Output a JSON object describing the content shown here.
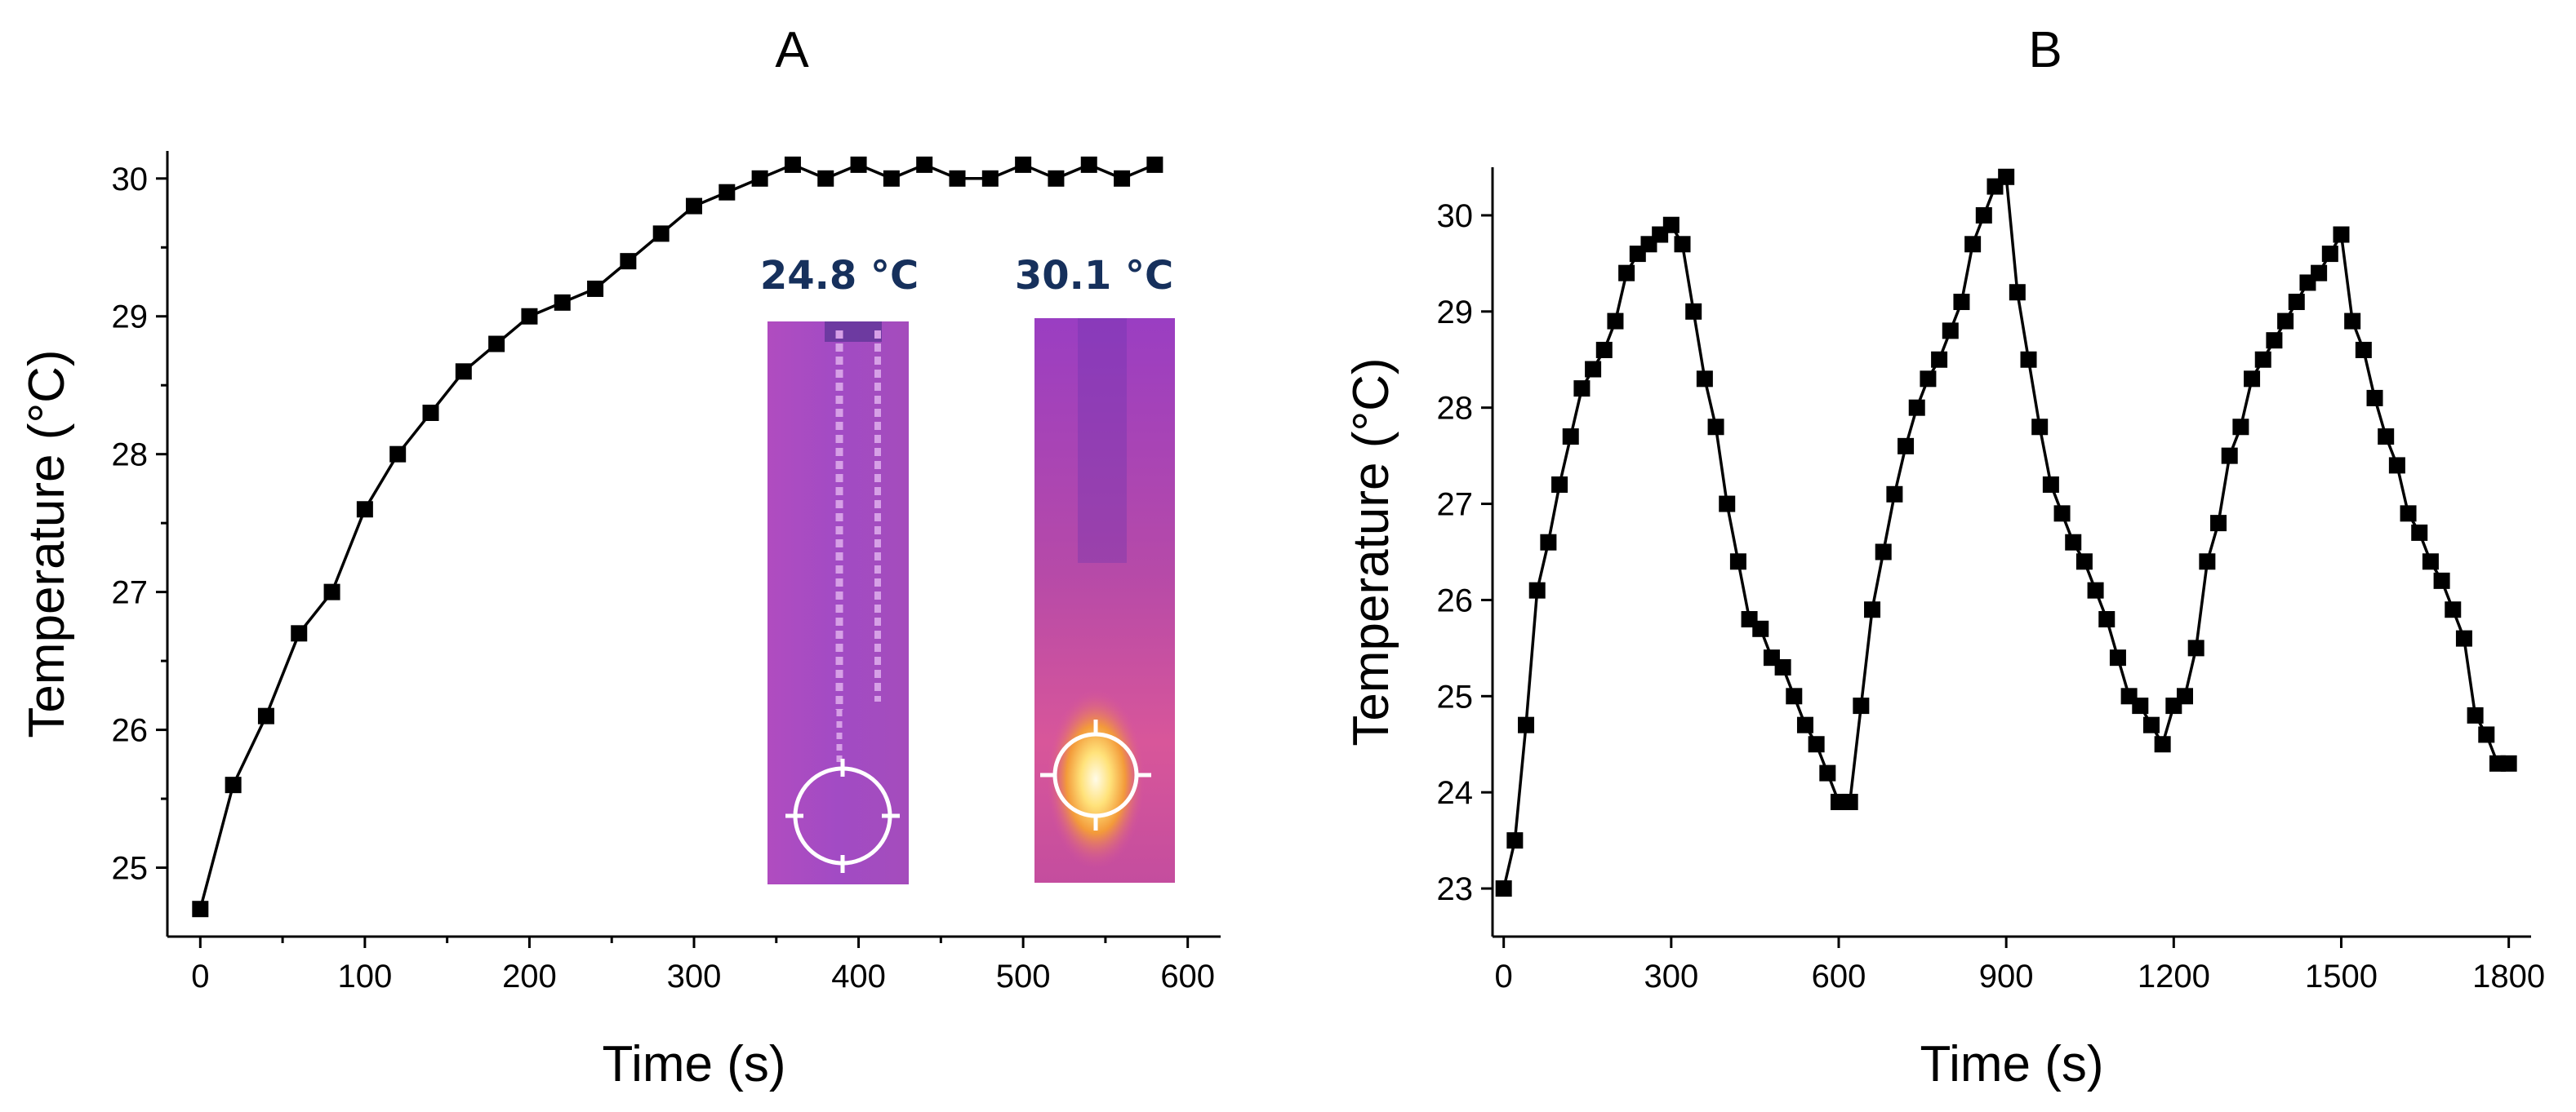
{
  "chart_data": [
    {
      "type": "line",
      "panel": "A",
      "title": "A",
      "xlabel": "Time (s)",
      "ylabel": "Temperature (°C)",
      "xlim": [
        -20,
        620
      ],
      "ylim": [
        24.5,
        30.2
      ],
      "xticks": [
        0,
        100,
        200,
        300,
        400,
        500,
        600
      ],
      "yticks": [
        25,
        26,
        27,
        28,
        29,
        30
      ],
      "series": [
        {
          "name": "Temperature",
          "x": [
            0,
            20,
            40,
            60,
            80,
            100,
            120,
            140,
            160,
            180,
            200,
            220,
            240,
            260,
            280,
            300,
            320,
            340,
            360,
            380,
            400,
            420,
            440,
            460,
            480,
            500,
            520,
            540,
            560,
            580
          ],
          "y": [
            24.7,
            25.6,
            26.1,
            26.7,
            27.0,
            27.6,
            28.0,
            28.3,
            28.6,
            28.8,
            29.0,
            29.1,
            29.2,
            29.4,
            29.6,
            29.8,
            29.9,
            30.0,
            30.1,
            30.0,
            30.1,
            30.0,
            30.1,
            30.0,
            30.0,
            30.1,
            30.0,
            30.1,
            30.0,
            30.1
          ]
        }
      ],
      "insets": [
        {
          "label": "24.8 °C"
        },
        {
          "label": "30.1 °C"
        }
      ]
    },
    {
      "type": "line",
      "panel": "B",
      "title": "B",
      "xlabel": "Time (s)",
      "ylabel": "Temperature (°C)",
      "xlim": [
        -20,
        1840
      ],
      "ylim": [
        22.5,
        30.5
      ],
      "xticks": [
        0,
        300,
        600,
        900,
        1200,
        1500,
        1800
      ],
      "yticks": [
        23,
        24,
        25,
        26,
        27,
        28,
        29,
        30
      ],
      "series": [
        {
          "name": "Temperature",
          "x": [
            0,
            20,
            40,
            60,
            80,
            100,
            120,
            140,
            160,
            180,
            200,
            220,
            240,
            260,
            280,
            300,
            320,
            340,
            360,
            380,
            400,
            420,
            440,
            460,
            480,
            500,
            520,
            540,
            560,
            580,
            600,
            620,
            640,
            660,
            680,
            700,
            720,
            740,
            760,
            780,
            800,
            820,
            840,
            860,
            880,
            900,
            920,
            940,
            960,
            980,
            1000,
            1020,
            1040,
            1060,
            1080,
            1100,
            1120,
            1140,
            1160,
            1180,
            1200,
            1220,
            1240,
            1260,
            1280,
            1300,
            1320,
            1340,
            1360,
            1380,
            1400,
            1420,
            1440,
            1460,
            1480,
            1500,
            1520,
            1540,
            1560,
            1580,
            1600,
            1620,
            1640,
            1660,
            1680,
            1700,
            1720,
            1740,
            1760,
            1780,
            1800
          ],
          "y": [
            23.0,
            23.5,
            24.7,
            26.1,
            26.6,
            27.2,
            27.7,
            28.2,
            28.4,
            28.6,
            28.9,
            29.4,
            29.6,
            29.7,
            29.8,
            29.9,
            29.7,
            29.0,
            28.3,
            27.8,
            27.0,
            26.4,
            25.8,
            25.7,
            25.4,
            25.3,
            25.0,
            24.7,
            24.5,
            24.2,
            23.9,
            23.9,
            24.9,
            25.9,
            26.5,
            27.1,
            27.6,
            28.0,
            28.3,
            28.5,
            28.8,
            29.1,
            29.7,
            30.0,
            30.3,
            30.4,
            29.2,
            28.5,
            27.8,
            27.2,
            26.9,
            26.6,
            26.4,
            26.1,
            25.8,
            25.4,
            25.0,
            24.9,
            24.7,
            24.5,
            24.9,
            25.0,
            25.5,
            26.4,
            26.8,
            27.5,
            27.8,
            28.3,
            28.5,
            28.7,
            28.9,
            29.1,
            29.3,
            29.4,
            29.6,
            29.8,
            28.9,
            28.6,
            28.1,
            27.7,
            27.4,
            26.9,
            26.7,
            26.4,
            26.2,
            25.9,
            25.6,
            24.8,
            24.6,
            24.3,
            24.3
          ]
        }
      ]
    }
  ]
}
